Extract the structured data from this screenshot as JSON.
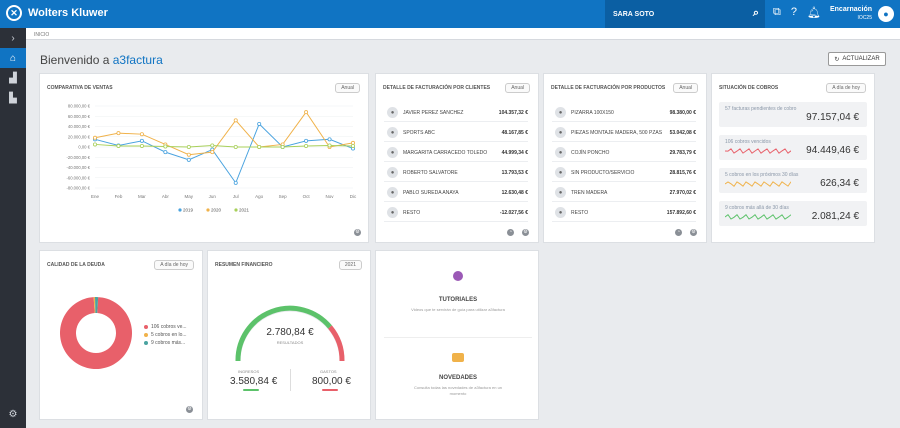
{
  "header": {
    "brand": "Wolters Kluwer",
    "search_value": "SARA SOTO",
    "user_name": "Encarnación",
    "user_company": "IOC25"
  },
  "breadcrumb": "INICIO",
  "welcome": {
    "prefix": "Bienvenido a",
    "product": "a3factura"
  },
  "refresh_label": "ACTUALIZAR",
  "sales": {
    "title": "COMPARATIVA DE VENTAS",
    "pill": "Anual"
  },
  "chart_data": {
    "type": "line",
    "categories": [
      "Ene",
      "Feb",
      "Mar",
      "Abr",
      "May",
      "Jun",
      "Jul",
      "Ago",
      "Sep",
      "Oct",
      "Nov",
      "Dic"
    ],
    "yticks": [
      "80.000,00 €",
      "60.000,00 €",
      "40.000,00 €",
      "20.000,00 €",
      "0,00 €",
      "-20.000,00 €",
      "-40.000,00 €",
      "-60.000,00 €",
      "-80.000,00 €"
    ],
    "ylim": [
      -80000,
      80000
    ],
    "series": [
      {
        "name": "2019",
        "color": "#4aa3df",
        "values": [
          15000,
          3000,
          12000,
          -10000,
          -25000,
          -5000,
          -70000,
          45000,
          0,
          12000,
          15000,
          -3000
        ]
      },
      {
        "name": "2020",
        "color": "#f0b24a",
        "values": [
          18000,
          27000,
          25000,
          5000,
          -15000,
          -10000,
          52000,
          0,
          5000,
          68000,
          0,
          8000
        ]
      },
      {
        "name": "2021",
        "color": "#a8d05a",
        "values": [
          5000,
          2000,
          2000,
          1000,
          0,
          3000,
          0,
          0,
          0,
          2000,
          3000,
          2000
        ]
      }
    ],
    "legend": "bottom"
  },
  "clients": {
    "title": "DETALLE DE FACTURACIÓN POR CLIENTES",
    "pill": "Anual",
    "rows": [
      {
        "name": "JAVIER PEREZ SANCHEZ",
        "value": "104.357,32 €"
      },
      {
        "name": "SPORTS ABC",
        "value": "48.167,85 €"
      },
      {
        "name": "MARGARITA CARRACEDO TOLEDO",
        "value": "44.999,34 €"
      },
      {
        "name": "ROBERTO SALVATORE",
        "value": "13.793,53 €"
      },
      {
        "name": "PABLO SUREDA ANAYA",
        "value": "12.630,48 €"
      },
      {
        "name": "RESTO",
        "value": "-12.027,56 €"
      }
    ]
  },
  "products": {
    "title": "DETALLE DE FACTURACIÓN POR PRODUCTOS",
    "pill": "Anual",
    "rows": [
      {
        "name": "PIZARRA 100X150",
        "value": "98.380,00 €"
      },
      {
        "name": "PIEZAS MONTAJE MADERA, 500 PZAS",
        "value": "53.042,08 €"
      },
      {
        "name": "COJÍN PONCHO",
        "value": "29.783,79 €"
      },
      {
        "name": "SIN PRODUCTO/SERVICIO",
        "value": "28.815,76 €"
      },
      {
        "name": "TREN MADERA",
        "value": "27.970,02 €"
      },
      {
        "name": "RESTO",
        "value": "157.892,60 €"
      }
    ]
  },
  "cobros": {
    "title": "SITUACIÓN DE COBROS",
    "pill": "A día de hoy",
    "items": [
      {
        "label": "57 facturas pendientes de cobro",
        "value": "97.157,04 €"
      },
      {
        "label": "106 cobros vencidos",
        "value": "94.449,46 €",
        "spark": "#e8606a"
      },
      {
        "label": "5 cobros en los próximos 30 días",
        "value": "626,34 €",
        "spark": "#f0b24a"
      },
      {
        "label": "9 cobros más allá de 30 días",
        "value": "2.081,24 €",
        "spark": "#5cc26a"
      }
    ]
  },
  "debt": {
    "title": "CALIDAD DE LA DEUDA",
    "pill": "A día de hoy",
    "legend": [
      {
        "label": "106 cobros ve...",
        "color": "#e8606a",
        "share": 0.98
      },
      {
        "label": "5 cobros en lo...",
        "color": "#f0b24a",
        "share": 0.006
      },
      {
        "label": "9 cobros más...",
        "color": "#4aa3a0",
        "share": 0.014
      }
    ]
  },
  "finance": {
    "title": "RESUMEN FINANCIERO",
    "pill": "2021",
    "result_value": "2.780,84 €",
    "result_label": "RESULTADOS",
    "income_label": "INGRESOS",
    "income_value": "3.580,84 €",
    "expense_label": "GASTOS",
    "expense_value": "800,00 €"
  },
  "help": {
    "tutorials_title": "TUTORIALES",
    "tutorials_text": "Videos que te servirán de guía para utilizar a3factura",
    "news_title": "NOVEDADES",
    "news_text": "Consulta todas las novedades de a3factura en un momento"
  }
}
